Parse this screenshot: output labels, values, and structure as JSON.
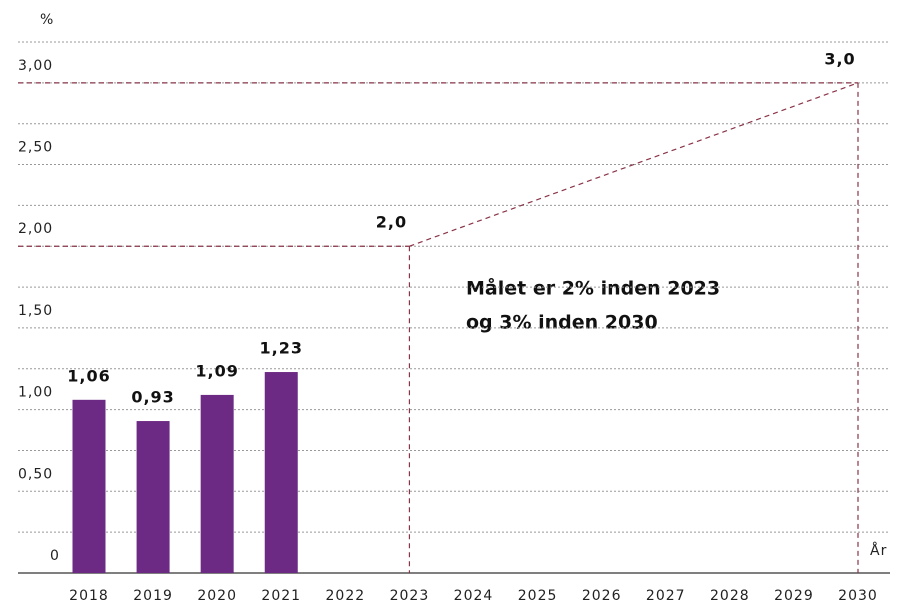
{
  "chart_data": {
    "type": "bar",
    "y_axis_label": "%",
    "x_axis_label": "År",
    "annotation": [
      "Målet er 2% inden 2023",
      "og 3% inden 2030"
    ],
    "categories": [
      "2018",
      "2019",
      "2020",
      "2021",
      "2022",
      "2023",
      "2024",
      "2025",
      "2026",
      "2027",
      "2028",
      "2029",
      "2030"
    ],
    "series": [
      {
        "type": "bar",
        "color": "#6c2a84",
        "values": [
          1.06,
          0.93,
          1.09,
          1.23,
          null,
          null,
          null,
          null,
          null,
          null,
          null,
          null,
          null
        ],
        "value_labels": [
          "1,06",
          "0,93",
          "1,09",
          "1,23",
          null,
          null,
          null,
          null,
          null,
          null,
          null,
          null,
          null
        ]
      },
      {
        "type": "line",
        "color": "#8a3448",
        "dashed": true,
        "values": [
          null,
          null,
          null,
          null,
          null,
          2,
          null,
          null,
          null,
          null,
          null,
          null,
          3
        ],
        "value_labels": [
          null,
          null,
          null,
          null,
          null,
          "2,0",
          null,
          null,
          null,
          null,
          null,
          null,
          "3,0"
        ]
      }
    ],
    "ylim": [
      0,
      3.25
    ],
    "yticks": [
      0,
      {
        "value": 0.5,
        "label": "0,50"
      },
      {
        "value": 1,
        "label": "1,00"
      },
      {
        "value": 1.5,
        "label": "1,50"
      },
      {
        "value": 2,
        "label": "2,00"
      },
      {
        "value": 2.5,
        "label": "2,50"
      },
      {
        "value": 3,
        "label": "3,00"
      }
    ],
    "minor_yticks": [
      0.25,
      0.5,
      0.75,
      1,
      1.25,
      1.5,
      1.75,
      2,
      2.25,
      2.5,
      2.75,
      3,
      3.25
    ],
    "grid": true
  }
}
